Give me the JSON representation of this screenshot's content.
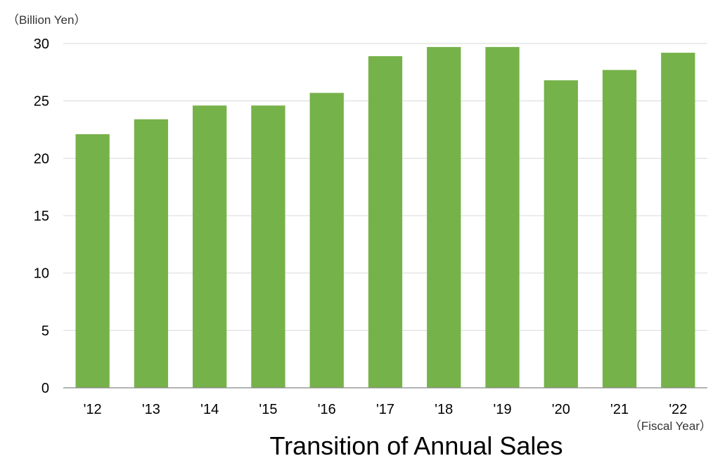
{
  "chart_data": {
    "type": "bar",
    "title": "Transition of Annual Sales",
    "ylabel": "（Billion Yen）",
    "xlabel": "（Fiscal Year）",
    "categories": [
      "'12",
      "'13",
      "'14",
      "'15",
      "'16",
      "'17",
      "'18",
      "'19",
      "'20",
      "'21",
      "'22"
    ],
    "values": [
      22.1,
      23.4,
      24.6,
      24.6,
      25.7,
      28.9,
      29.7,
      29.7,
      26.8,
      27.7,
      29.2
    ],
    "ylim": [
      0,
      30
    ],
    "yticks": [
      "0",
      "5",
      "10",
      "15",
      "20",
      "25",
      "30"
    ],
    "grid": true,
    "legend": "none",
    "bar_color": "#76b24a",
    "grid_color": "#d9d9d9",
    "axis_color": "#888888"
  }
}
